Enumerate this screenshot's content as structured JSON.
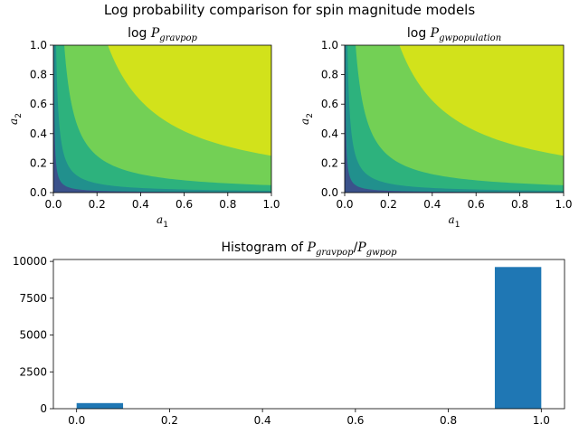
{
  "figure": {
    "suptitle": "Log probability comparison for spin magnitude models"
  },
  "chart_data": [
    {
      "type": "heatmap",
      "title_prefix": "log ",
      "title_var": "P",
      "title_sub": "gravpop",
      "xlabel_var": "a",
      "xlabel_sub": "1",
      "ylabel_var": "a",
      "ylabel_sub": "2",
      "xlim": [
        0,
        1
      ],
      "ylim": [
        0,
        1
      ],
      "xticks": [
        "0.0",
        "0.2",
        "0.4",
        "0.6",
        "0.8",
        "1.0"
      ],
      "yticks": [
        "0.0",
        "0.2",
        "0.4",
        "0.6",
        "0.8",
        "1.0"
      ],
      "contour_levels": [
        0.0025,
        0.0125,
        0.05,
        0.25
      ],
      "colors": [
        "#3b528b",
        "#21908d",
        "#2db27d",
        "#73d055",
        "#d2e21b"
      ]
    },
    {
      "type": "heatmap",
      "title_prefix": "log ",
      "title_var": "P",
      "title_sub": "gwpopulation",
      "xlabel_var": "a",
      "xlabel_sub": "1",
      "ylabel_var": "a",
      "ylabel_sub": "2",
      "xlim": [
        0,
        1
      ],
      "ylim": [
        0,
        1
      ],
      "xticks": [
        "0.0",
        "0.2",
        "0.4",
        "0.6",
        "0.8",
        "1.0"
      ],
      "yticks": [
        "0.0",
        "0.2",
        "0.4",
        "0.6",
        "0.8",
        "1.0"
      ],
      "contour_levels": [
        0.0025,
        0.0125,
        0.05,
        0.25
      ],
      "colors": [
        "#3b528b",
        "#21908d",
        "#2db27d",
        "#73d055",
        "#d2e21b"
      ]
    },
    {
      "type": "bar",
      "title_prefix": "Histogram of ",
      "title_var1": "P",
      "title_sub1": "gravpop",
      "title_sep": "/",
      "title_var2": "P",
      "title_sub2": "gwpop",
      "bins": [
        [
          0.0,
          0.1
        ],
        [
          0.9,
          1.0
        ]
      ],
      "values": [
        380,
        9620
      ],
      "xlim": [
        -0.05,
        1.05
      ],
      "ylim": [
        0,
        10130
      ],
      "xticks": [
        0.0,
        0.2,
        0.4,
        0.6,
        0.8,
        1.0
      ],
      "xtick_labels": [
        "0.0",
        "0.2",
        "0.4",
        "0.6",
        "0.8",
        "1.0"
      ],
      "yticks": [
        0,
        2500,
        5000,
        7500,
        10000
      ],
      "ytick_labels": [
        "0",
        "2500",
        "5000",
        "7500",
        "10000"
      ],
      "bar_color": "#1f77b4"
    }
  ]
}
